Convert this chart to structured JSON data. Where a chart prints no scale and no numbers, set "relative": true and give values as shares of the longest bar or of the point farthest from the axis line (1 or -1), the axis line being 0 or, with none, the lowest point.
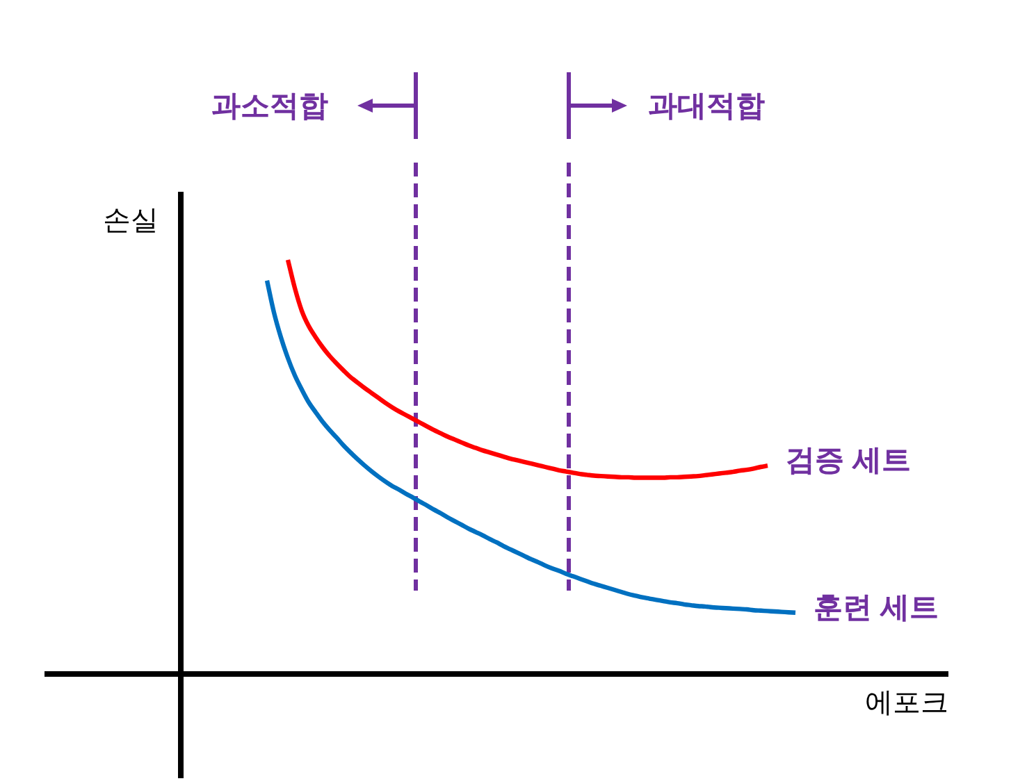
{
  "chart_data": {
    "type": "line",
    "relative": true,
    "xlabel": "에포크",
    "ylabel": "손실",
    "categories": [
      null,
      null,
      null,
      null,
      null,
      null,
      null,
      null,
      null,
      null,
      null,
      null,
      null,
      null,
      null,
      null,
      null,
      null,
      null,
      null,
      null,
      null,
      null,
      null,
      null,
      null,
      null,
      null,
      null,
      null,
      null,
      null,
      null,
      null,
      null,
      null,
      null,
      null,
      null,
      null,
      null,
      null,
      null,
      null,
      null,
      null,
      null,
      null,
      null,
      null,
      null,
      null,
      null,
      null,
      null,
      null,
      null,
      null,
      null,
      null,
      null,
      null,
      null,
      null,
      null,
      null,
      null,
      null,
      null,
      null,
      null,
      null,
      null,
      null,
      null,
      null,
      null
    ],
    "series": [
      {
        "name": "검증 세트",
        "color": "#ff0000",
        "values": [
          null,
          null,
          null,
          1,
          0.932,
          0.877,
          0.84,
          0.813,
          0.789,
          0.768,
          0.75,
          0.733,
          0.717,
          0.704,
          0.691,
          0.679,
          0.667,
          0.655,
          0.644,
          0.634,
          0.625,
          0.616,
          0.607,
          0.598,
          0.589,
          0.581,
          0.573,
          0.566,
          0.559,
          0.552,
          0.546,
          0.54,
          0.535,
          0.53,
          0.525,
          0.52,
          0.516,
          0.512,
          0.508,
          0.504,
          0.5,
          0.496,
          0.492,
          0.489,
          0.486,
          0.483,
          0.481,
          0.479,
          0.478,
          0.477,
          0.476,
          0.475,
          0.475,
          0.474,
          0.474,
          0.474,
          0.474,
          0.474,
          0.475,
          0.475,
          0.476,
          0.477,
          0.478,
          0.48,
          0.482,
          0.484,
          0.486,
          0.488,
          0.491,
          0.493,
          0.496,
          0.5,
          0.503,
          null,
          null,
          null,
          null
        ]
      },
      {
        "name": "훈련 세트",
        "color": "#0070c0",
        "values": [
          0.95,
          0.873,
          0.813,
          0.763,
          0.721,
          0.687,
          0.656,
          0.632,
          0.609,
          0.589,
          0.571,
          0.552,
          0.535,
          0.519,
          0.504,
          0.49,
          0.477,
          0.465,
          0.454,
          0.445,
          0.435,
          0.426,
          0.416,
          0.407,
          0.397,
          0.388,
          0.378,
          0.369,
          0.36,
          0.351,
          0.343,
          0.335,
          0.326,
          0.318,
          0.309,
          0.301,
          0.293,
          0.285,
          0.277,
          0.27,
          0.262,
          0.255,
          0.249,
          0.242,
          0.236,
          0.23,
          0.224,
          0.218,
          0.213,
          0.208,
          0.203,
          0.198,
          0.193,
          0.189,
          0.185,
          0.182,
          0.179,
          0.176,
          0.173,
          0.171,
          0.168,
          0.166,
          0.164,
          0.163,
          0.161,
          0.16,
          0.159,
          0.158,
          0.157,
          0.156,
          0.154,
          0.153,
          0.152,
          0.151,
          0.15,
          0.149,
          0.148
        ]
      }
    ],
    "annotations": [
      "과소적합",
      "과대적합"
    ]
  }
}
